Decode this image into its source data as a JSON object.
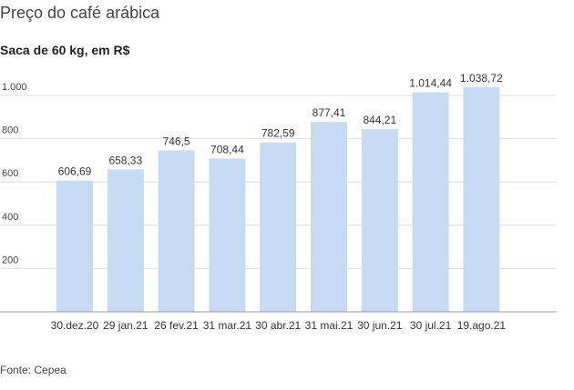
{
  "header": {
    "title": "Preço do café arábica",
    "subtitle": "Saca de 60 kg, em R$"
  },
  "footer": {
    "source": "Fonte: Cepea"
  },
  "chart_data": {
    "type": "bar",
    "title": "Preço do café arábica",
    "subtitle": "Saca de 60 kg, em R$",
    "xlabel": "",
    "ylabel": "",
    "categories": [
      "30.dez.20",
      "29 jan.21",
      "26 fev.21",
      "31 mar.21",
      "30 abr.21",
      "31 mai.21",
      "30 jun.21",
      "30 jul.21",
      "19.ago.21"
    ],
    "values": [
      606.69,
      658.33,
      746.5,
      708.44,
      782.59,
      877.41,
      844.21,
      1014.44,
      1038.72
    ],
    "value_labels": [
      "606,69",
      "658,33",
      "746,5",
      "708,44",
      "782,59",
      "877,41",
      "844,21",
      "1.014,44",
      "1.038,72"
    ],
    "yticks": [
      200,
      400,
      600,
      800,
      1000
    ],
    "ytick_labels": [
      "200",
      "400",
      "600",
      "800",
      "1.000"
    ],
    "ylim": [
      0,
      1000
    ],
    "grid": true,
    "legend": "none",
    "bar_color": "#c6dbf3",
    "grid_color": "#dddddd",
    "axis_color": "#999999"
  }
}
